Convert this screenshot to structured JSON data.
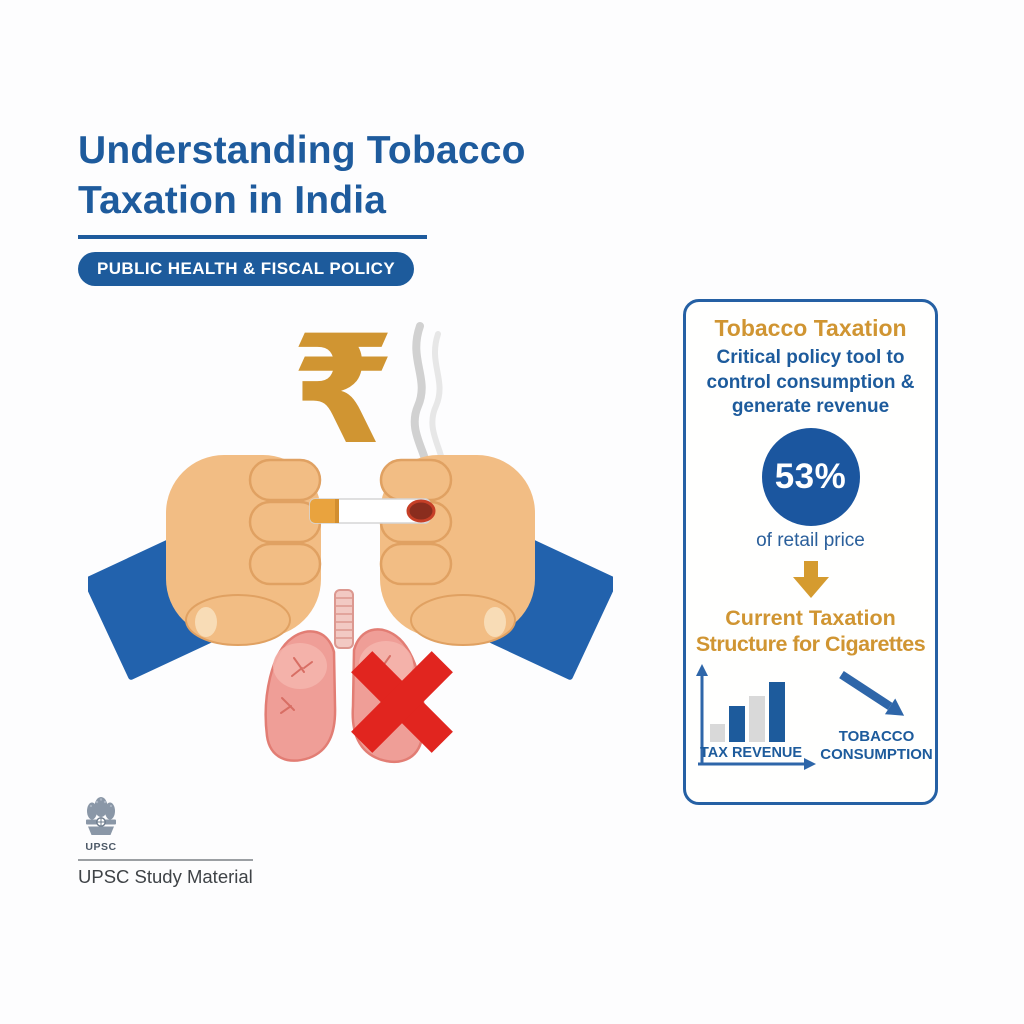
{
  "header": {
    "title_line1": "Understanding Tobacco",
    "title_line2": "Taxation in India",
    "badge": "PUBLIC HEALTH & FISCAL POLICY"
  },
  "illustration": {
    "rupee_symbol": "₹",
    "depicts": "two hands in blue sleeves breaking a lit cigarette above pink lungs marked with a red cross, gold rupee symbol and smoke above"
  },
  "panel": {
    "heading": "Tobacco Taxation",
    "description_lines": [
      "Critical policy tool to",
      "control consumption &",
      "generate revenue"
    ],
    "stat_value": "53%",
    "stat_caption": "of retail price",
    "section_heading_line1": "Current Taxation",
    "section_heading_line2": "Structure for Cigarettes",
    "chart_label": "TAX REVENUE",
    "trend_label_line1": "TOBACCO",
    "trend_label_line2": "CONSUMPTION"
  },
  "footer": {
    "emblem_label": "UPSC",
    "caption": "UPSC Study Material"
  },
  "colors": {
    "primary_blue": "#1d5b9c",
    "accent_gold": "#d09532",
    "stat_circle_blue": "#1b569f",
    "bar_gray": "#d9d9d9",
    "cross_red": "#e1251f",
    "lung_pink": "#ef9e97",
    "skin": "#f2bd84",
    "sleeve_blue": "#2262ad"
  },
  "chart_data": {
    "type": "bar",
    "categories": [
      "bar-1",
      "bar-2",
      "bar-3",
      "bar-4"
    ],
    "values": [
      18,
      36,
      46,
      60
    ],
    "series_colors": [
      "#d9d9d9",
      "#1d5b9c",
      "#d9d9d9",
      "#1d5b9c"
    ],
    "title": "TAX REVENUE",
    "xlabel": "",
    "ylabel": "",
    "ylim": [
      0,
      70
    ],
    "note": "Decorative rising bars with no numeric labels; paired with a downward arrow labeled TOBACCO CONSUMPTION"
  }
}
